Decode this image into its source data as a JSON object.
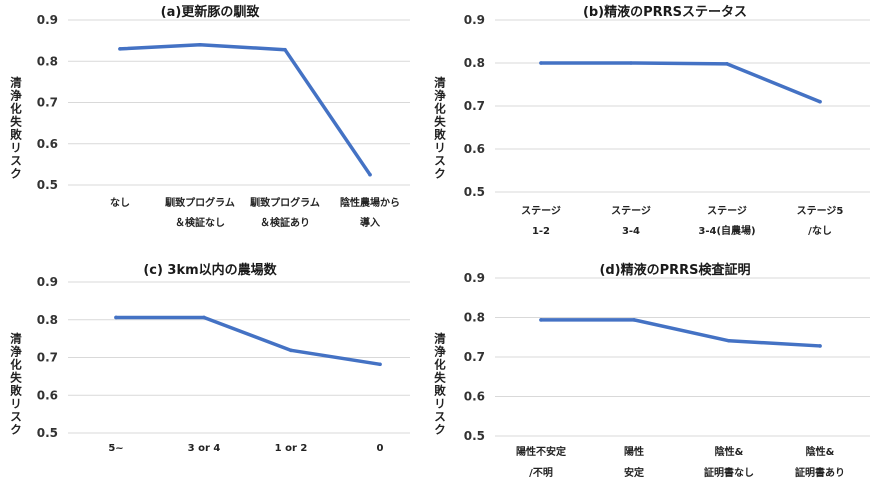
{
  "chart_data": [
    {
      "type": "line",
      "title": "(a)更新豚の馴致",
      "ylabel": "清浄化失敗リスク",
      "xlabel": "",
      "ylim": [
        0.5,
        0.9
      ],
      "yticks": [
        "0.5",
        "0.6",
        "0.7",
        "0.8",
        "0.9"
      ],
      "grid": true,
      "categories": [
        [
          "なし"
        ],
        [
          "馴致プログラム",
          "＆検証なし"
        ],
        [
          "馴致プログラム",
          "＆検証あり"
        ],
        [
          "陰性農場から",
          "導入"
        ]
      ],
      "series": [
        {
          "name": "清浄化失敗リスク",
          "color": "#4472c4",
          "values": [
            0.83,
            0.84,
            0.828,
            0.525
          ]
        }
      ]
    },
    {
      "type": "line",
      "title": "(b)精液のPRRSステータス",
      "ylabel": "清浄化失敗リスク",
      "xlabel": "",
      "ylim": [
        0.5,
        0.9
      ],
      "yticks": [
        "0.5",
        "0.6",
        "0.7",
        "0.8",
        "0.9"
      ],
      "grid": true,
      "categories": [
        [
          "ステージ",
          "1-2"
        ],
        [
          "ステージ",
          "3-4"
        ],
        [
          "ステージ",
          "3-4(自農場)"
        ],
        [
          "ステージ5",
          "/なし"
        ]
      ],
      "series": [
        {
          "name": "清浄化失敗リスク",
          "color": "#4472c4",
          "values": [
            0.8,
            0.8,
            0.798,
            0.71
          ]
        }
      ]
    },
    {
      "type": "line",
      "title": "(c) 3km以内の農場数",
      "ylabel": "清浄化失敗リスク",
      "xlabel": "",
      "ylim": [
        0.5,
        0.9
      ],
      "yticks": [
        "0.5",
        "0.6",
        "0.7",
        "0.8",
        "0.9"
      ],
      "grid": true,
      "categories": [
        [
          "5~"
        ],
        [
          "3 or 4"
        ],
        [
          "1 or 2"
        ],
        [
          "0"
        ]
      ],
      "series": [
        {
          "name": "清浄化失敗リスク",
          "color": "#4472c4",
          "values": [
            0.806,
            0.806,
            0.719,
            0.682
          ]
        }
      ]
    },
    {
      "type": "line",
      "title": "(d)精液のPRRS検査証明",
      "ylabel": "清浄化失敗リスク",
      "xlabel": "",
      "ylim": [
        0.5,
        0.9
      ],
      "yticks": [
        "0.5",
        "0.6",
        "0.7",
        "0.8",
        "0.9"
      ],
      "grid": true,
      "categories": [
        [
          "陽性不安定",
          "/不明"
        ],
        [
          "陽性",
          "安定"
        ],
        [
          "陰性&",
          "証明書なし"
        ],
        [
          "陰性&",
          "証明書あり"
        ]
      ],
      "series": [
        {
          "name": "清浄化失敗リスク",
          "color": "#4472c4",
          "values": [
            0.794,
            0.794,
            0.741,
            0.728
          ]
        }
      ]
    }
  ]
}
